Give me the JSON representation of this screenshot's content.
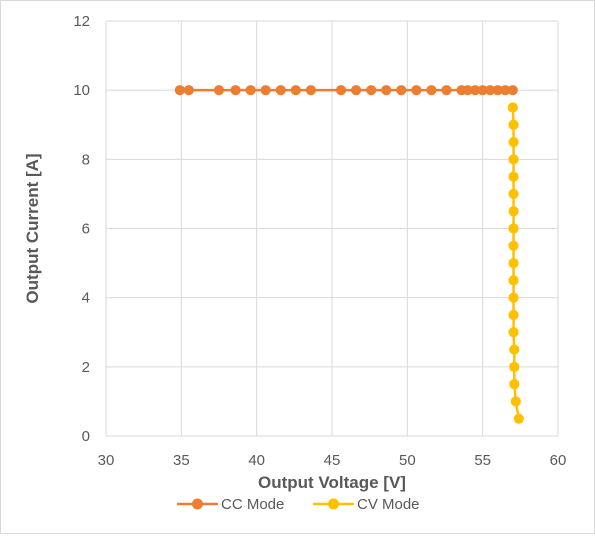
{
  "chart_data": {
    "type": "scatter",
    "title": "",
    "xlabel": "Output Voltage [V]",
    "ylabel": "Output Current [A]",
    "xlim": [
      30,
      60
    ],
    "ylim": [
      0,
      12
    ],
    "xticks": [
      "30",
      "35",
      "40",
      "45",
      "50",
      "55",
      "60"
    ],
    "yticks": [
      "0",
      "2",
      "4",
      "6",
      "8",
      "10",
      "12"
    ],
    "grid": true,
    "legend_position": "bottom",
    "lines_connected": true,
    "series": [
      {
        "name": "CC Mode",
        "color": "#ED7D31",
        "points": [
          [
            34.9,
            10
          ],
          [
            35.5,
            10
          ],
          [
            37.5,
            10
          ],
          [
            38.6,
            10
          ],
          [
            39.6,
            10
          ],
          [
            40.6,
            10
          ],
          [
            41.6,
            10
          ],
          [
            42.6,
            10
          ],
          [
            43.6,
            10
          ],
          [
            45.6,
            10
          ],
          [
            46.6,
            10
          ],
          [
            47.6,
            10
          ],
          [
            48.6,
            10
          ],
          [
            49.6,
            10
          ],
          [
            50.6,
            10
          ],
          [
            51.6,
            10
          ],
          [
            52.6,
            10
          ],
          [
            53.6,
            10
          ],
          [
            54.0,
            10
          ],
          [
            54.5,
            10
          ],
          [
            55.0,
            10
          ],
          [
            55.5,
            10
          ],
          [
            56.0,
            10
          ],
          [
            56.5,
            10
          ],
          [
            57.0,
            10
          ]
        ]
      },
      {
        "name": "CV Mode",
        "color": "#FFC000",
        "points": [
          [
            57.0,
            9.5
          ],
          [
            57.05,
            9.0
          ],
          [
            57.05,
            8.5
          ],
          [
            57.05,
            8.0
          ],
          [
            57.05,
            7.5
          ],
          [
            57.05,
            7.0
          ],
          [
            57.05,
            6.5
          ],
          [
            57.05,
            6.0
          ],
          [
            57.05,
            5.5
          ],
          [
            57.05,
            5.0
          ],
          [
            57.05,
            4.5
          ],
          [
            57.05,
            4.0
          ],
          [
            57.05,
            3.5
          ],
          [
            57.05,
            3.0
          ],
          [
            57.1,
            2.5
          ],
          [
            57.1,
            2.0
          ],
          [
            57.1,
            1.5
          ],
          [
            57.2,
            1.0
          ],
          [
            57.4,
            0.5
          ]
        ]
      }
    ]
  }
}
